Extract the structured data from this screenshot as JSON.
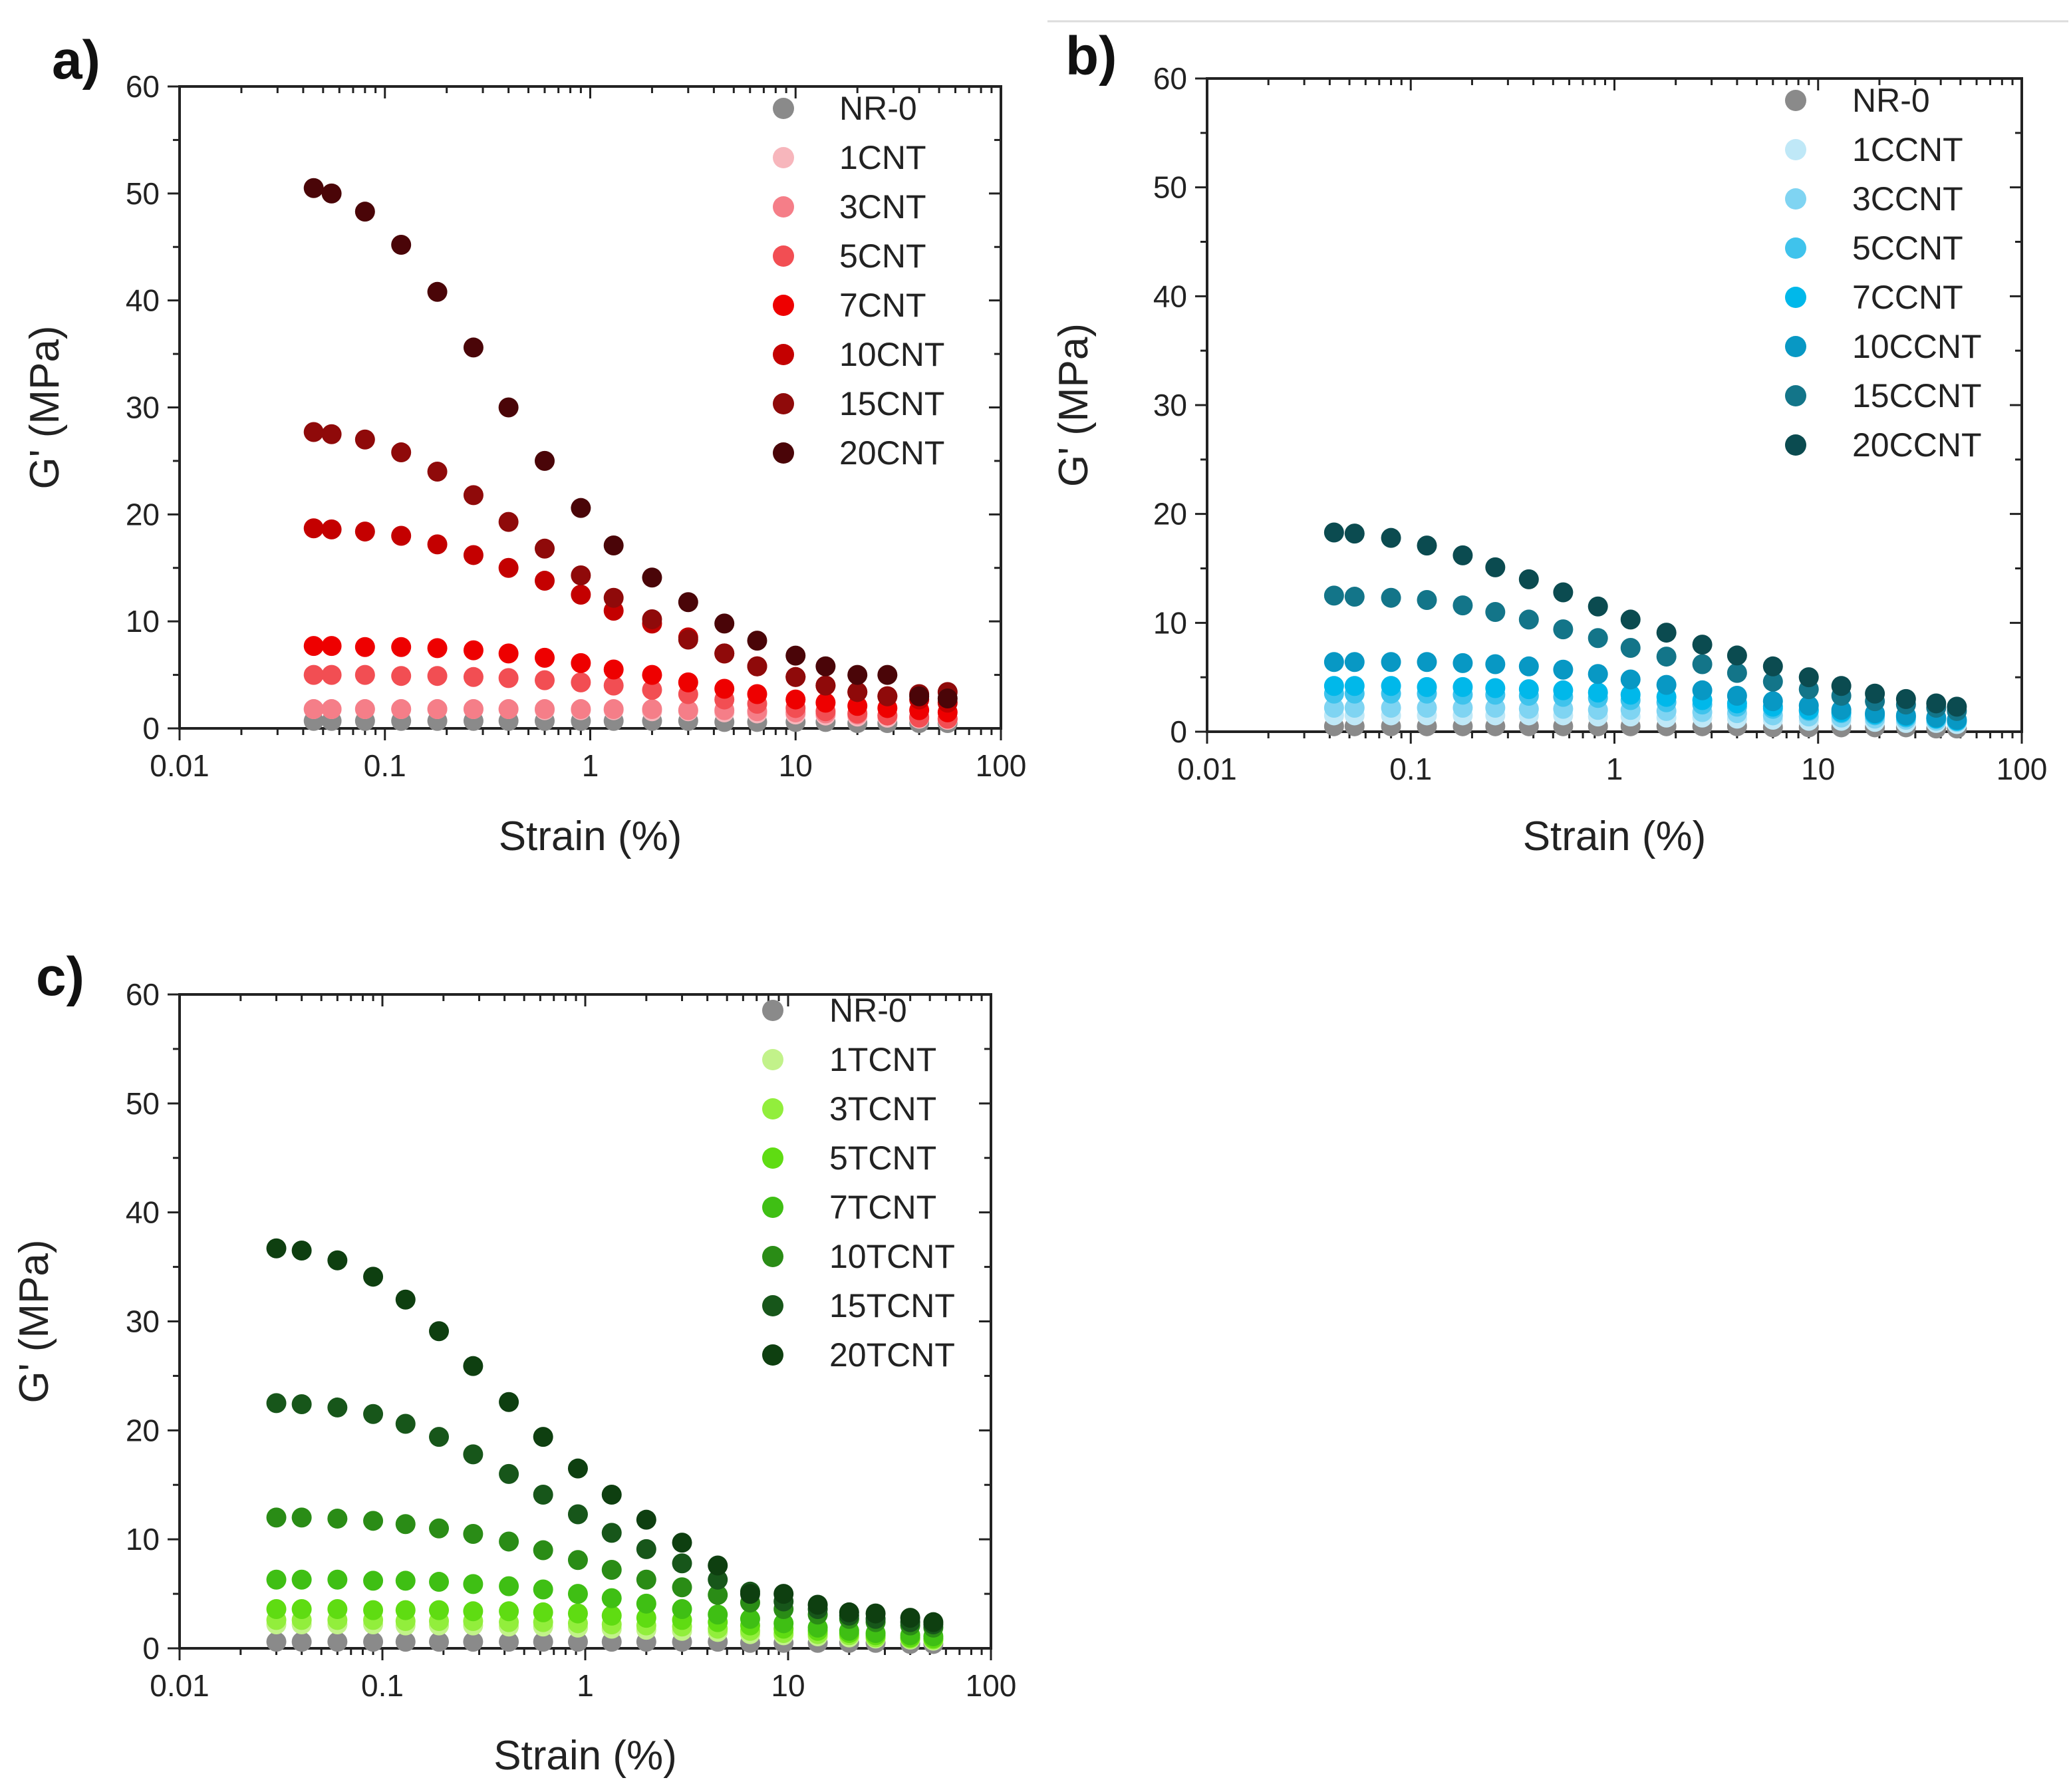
{
  "chart_data": [
    {
      "panel": "a)",
      "type": "scatter",
      "xscale": "log",
      "xlim": [
        0.01,
        100
      ],
      "ylim": [
        0,
        60
      ],
      "xticks": [
        "0.01",
        "0.1",
        "1",
        "10",
        "100"
      ],
      "yticks": [
        "0",
        "10",
        "20",
        "30",
        "40",
        "50",
        "60"
      ],
      "xlabel": "Strain (%)",
      "ylabel": "G' (MPa)",
      "legend_position": "top-right",
      "x": [
        0.045,
        0.055,
        0.08,
        0.12,
        0.18,
        0.27,
        0.4,
        0.6,
        0.9,
        1.3,
        2.0,
        3.0,
        4.5,
        6.5,
        10,
        14,
        20,
        28,
        40,
        55
      ],
      "series": [
        {
          "name": "NR-0",
          "color": "#8a8a8a",
          "values": [
            0.7,
            0.7,
            0.7,
            0.7,
            0.7,
            0.7,
            0.7,
            0.7,
            0.7,
            0.7,
            0.7,
            0.7,
            0.6,
            0.6,
            0.6,
            0.6,
            0.5,
            0.5,
            0.5,
            0.5
          ]
        },
        {
          "name": "1CNT",
          "color": "#f7b6bc",
          "values": [
            1.8,
            1.8,
            1.8,
            1.8,
            1.8,
            1.8,
            1.8,
            1.7,
            1.7,
            1.7,
            1.6,
            1.6,
            1.5,
            1.4,
            1.3,
            1.2,
            1.1,
            1.0,
            0.9,
            0.8
          ]
        },
        {
          "name": "3CNT",
          "color": "#f57e88",
          "values": [
            1.8,
            1.8,
            1.8,
            1.8,
            1.8,
            1.8,
            1.8,
            1.8,
            1.8,
            1.8,
            1.8,
            1.7,
            1.7,
            1.6,
            1.5,
            1.4,
            1.3,
            1.2,
            1.1,
            0.9
          ]
        },
        {
          "name": "5CNT",
          "color": "#f24e53",
          "values": [
            5.0,
            5.0,
            5.0,
            4.9,
            4.9,
            4.8,
            4.7,
            4.5,
            4.3,
            4.0,
            3.6,
            3.2,
            2.7,
            2.3,
            1.9,
            1.6,
            1.4,
            1.2,
            1.0,
            0.9
          ]
        },
        {
          "name": "7CNT",
          "color": "#ee0000",
          "values": [
            7.7,
            7.7,
            7.6,
            7.6,
            7.5,
            7.3,
            7.0,
            6.6,
            6.1,
            5.5,
            5.0,
            4.3,
            3.7,
            3.2,
            2.7,
            2.4,
            2.1,
            1.9,
            1.7,
            1.5
          ]
        },
        {
          "name": "10CNT",
          "color": "#c40000",
          "values": [
            18.7,
            18.6,
            18.4,
            18.0,
            17.2,
            16.2,
            15.0,
            13.8,
            12.5,
            11.0,
            9.8,
            8.5,
            7.0,
            5.8,
            4.8,
            4.0,
            3.4,
            3.0,
            2.7,
            2.4
          ]
        },
        {
          "name": "15CNT",
          "color": "#8f0a0a",
          "values": [
            27.7,
            27.5,
            27.0,
            25.8,
            24.0,
            21.8,
            19.3,
            16.8,
            14.3,
            12.2,
            10.2,
            8.3,
            7.0,
            5.8,
            4.8,
            4.0,
            3.4,
            3.0,
            3.2,
            3.4
          ]
        },
        {
          "name": "20CNT",
          "color": "#4a0508",
          "values": [
            50.5,
            50.0,
            48.3,
            45.2,
            40.8,
            35.6,
            30.0,
            25.0,
            20.6,
            17.1,
            14.1,
            11.8,
            9.8,
            8.2,
            6.8,
            5.8,
            5.0,
            5.0,
            3.0,
            2.8
          ]
        }
      ]
    },
    {
      "panel": "b)",
      "type": "scatter",
      "xscale": "log",
      "xlim": [
        0.01,
        100
      ],
      "ylim": [
        0,
        60
      ],
      "xticks": [
        "0.01",
        "0.1",
        "1",
        "10",
        "100"
      ],
      "yticks": [
        "0",
        "10",
        "20",
        "30",
        "40",
        "50",
        "60"
      ],
      "xlabel": "Strain (%)",
      "ylabel": "G' (MPa)",
      "legend_position": "top-right",
      "x": [
        0.042,
        0.053,
        0.08,
        0.12,
        0.18,
        0.26,
        0.38,
        0.56,
        0.83,
        1.2,
        1.8,
        2.7,
        4.0,
        6.0,
        9.0,
        13,
        19,
        27,
        38,
        48
      ],
      "series": [
        {
          "name": "NR-0",
          "color": "#8a8a8a",
          "values": [
            0.5,
            0.5,
            0.5,
            0.5,
            0.5,
            0.5,
            0.5,
            0.5,
            0.5,
            0.5,
            0.5,
            0.5,
            0.5,
            0.4,
            0.4,
            0.4,
            0.4,
            0.4,
            0.3,
            0.3
          ]
        },
        {
          "name": "1CCNT",
          "color": "#bfe8f7",
          "values": [
            1.5,
            1.5,
            1.5,
            1.5,
            1.5,
            1.5,
            1.5,
            1.5,
            1.4,
            1.4,
            1.3,
            1.3,
            1.2,
            1.1,
            1.0,
            1.0,
            0.9,
            0.8,
            0.8,
            0.7
          ]
        },
        {
          "name": "3CCNT",
          "color": "#7fd4f2",
          "values": [
            2.2,
            2.2,
            2.2,
            2.2,
            2.2,
            2.2,
            2.1,
            2.1,
            2.0,
            2.0,
            1.9,
            1.8,
            1.7,
            1.5,
            1.4,
            1.3,
            1.2,
            1.1,
            1.0,
            0.9
          ]
        },
        {
          "name": "5CCNT",
          "color": "#3fc3ec",
          "values": [
            3.5,
            3.5,
            3.5,
            3.5,
            3.4,
            3.4,
            3.3,
            3.2,
            3.1,
            2.9,
            2.7,
            2.5,
            2.3,
            2.1,
            1.9,
            1.7,
            1.5,
            1.3,
            1.2,
            1.0
          ]
        },
        {
          "name": "7CCNT",
          "color": "#00b8ea",
          "values": [
            4.2,
            4.2,
            4.2,
            4.1,
            4.1,
            4.0,
            3.9,
            3.8,
            3.6,
            3.4,
            3.2,
            2.9,
            2.6,
            2.3,
            2.0,
            1.8,
            1.6,
            1.4,
            1.2,
            1.0
          ]
        },
        {
          "name": "10CCNT",
          "color": "#0898c4",
          "values": [
            6.4,
            6.4,
            6.4,
            6.4,
            6.3,
            6.2,
            6.0,
            5.7,
            5.3,
            4.8,
            4.3,
            3.8,
            3.3,
            2.8,
            2.4,
            2.0,
            1.7,
            1.5,
            1.3,
            1.1
          ]
        },
        {
          "name": "15CCNT",
          "color": "#137589",
          "values": [
            12.5,
            12.4,
            12.3,
            12.1,
            11.6,
            11.0,
            10.3,
            9.4,
            8.6,
            7.7,
            6.9,
            6.2,
            5.4,
            4.6,
            3.9,
            3.3,
            2.8,
            2.5,
            2.2,
            1.9
          ]
        },
        {
          "name": "20CCNT",
          "color": "#0b4b50",
          "values": [
            18.3,
            18.2,
            17.8,
            17.1,
            16.2,
            15.1,
            14.0,
            12.8,
            11.5,
            10.3,
            9.1,
            8.0,
            7.0,
            6.0,
            5.0,
            4.2,
            3.5,
            3.0,
            2.6,
            2.3
          ]
        }
      ]
    },
    {
      "panel": "c)",
      "type": "scatter",
      "xscale": "log",
      "xlim": [
        0.01,
        100
      ],
      "ylim": [
        0,
        60
      ],
      "xticks": [
        "0.01",
        "0.1",
        "1",
        "10",
        "100"
      ],
      "yticks": [
        "0",
        "10",
        "20",
        "30",
        "40",
        "50",
        "60"
      ],
      "xlabel": "Strain (%)",
      "ylabel": "G' (MPa)",
      "legend_position": "top-right",
      "x": [
        0.03,
        0.04,
        0.06,
        0.09,
        0.13,
        0.19,
        0.28,
        0.42,
        0.62,
        0.92,
        1.35,
        2.0,
        3.0,
        4.5,
        6.5,
        9.5,
        14,
        20,
        27,
        40,
        52
      ],
      "series": [
        {
          "name": "NR-0",
          "color": "#8a8a8a",
          "values": [
            0.6,
            0.6,
            0.6,
            0.6,
            0.6,
            0.6,
            0.6,
            0.6,
            0.6,
            0.6,
            0.6,
            0.6,
            0.6,
            0.6,
            0.5,
            0.5,
            0.5,
            0.5,
            0.5,
            0.4,
            0.4
          ]
        },
        {
          "name": "1TCNT",
          "color": "#c2f28a",
          "values": [
            2.2,
            2.2,
            2.2,
            2.2,
            2.1,
            2.1,
            2.1,
            2.0,
            2.0,
            1.9,
            1.8,
            1.7,
            1.6,
            1.5,
            1.3,
            1.2,
            1.1,
            1.0,
            0.9,
            0.8,
            0.7
          ]
        },
        {
          "name": "3TCNT",
          "color": "#92ee3c",
          "values": [
            2.6,
            2.6,
            2.6,
            2.6,
            2.5,
            2.5,
            2.5,
            2.4,
            2.4,
            2.3,
            2.2,
            2.1,
            2.0,
            1.8,
            1.6,
            1.4,
            1.3,
            1.2,
            1.0,
            0.9,
            0.8
          ]
        },
        {
          "name": "5TCNT",
          "color": "#5fdc12",
          "values": [
            3.6,
            3.6,
            3.6,
            3.5,
            3.5,
            3.5,
            3.4,
            3.4,
            3.3,
            3.2,
            3.0,
            2.8,
            2.6,
            2.4,
            2.1,
            1.8,
            1.6,
            1.4,
            1.2,
            1.0,
            0.9
          ]
        },
        {
          "name": "7TCNT",
          "color": "#3fbf14",
          "values": [
            6.3,
            6.3,
            6.3,
            6.2,
            6.2,
            6.1,
            5.9,
            5.7,
            5.4,
            5.0,
            4.6,
            4.1,
            3.6,
            3.1,
            2.7,
            2.3,
            1.9,
            1.6,
            1.4,
            1.2,
            1.1
          ]
        },
        {
          "name": "10TCNT",
          "color": "#2a8c16",
          "values": [
            12.0,
            12.0,
            11.9,
            11.7,
            11.4,
            11.0,
            10.5,
            9.8,
            9.0,
            8.1,
            7.2,
            6.3,
            5.6,
            4.9,
            4.2,
            3.6,
            3.1,
            2.7,
            2.4,
            2.1,
            1.9
          ]
        },
        {
          "name": "15TCNT",
          "color": "#17561a",
          "values": [
            22.5,
            22.4,
            22.1,
            21.5,
            20.6,
            19.4,
            17.8,
            16.0,
            14.1,
            12.3,
            10.6,
            9.1,
            7.8,
            6.3,
            5.2,
            4.3,
            3.6,
            3.0,
            2.7,
            2.4,
            2.2
          ]
        },
        {
          "name": "20TCNT",
          "color": "#0e3f10",
          "values": [
            36.7,
            36.5,
            35.6,
            34.1,
            32.0,
            29.1,
            25.9,
            22.6,
            19.4,
            16.5,
            14.1,
            11.8,
            9.7,
            7.6,
            5.0,
            5.0,
            4.0,
            3.3,
            3.2,
            2.8,
            2.4
          ]
        }
      ]
    }
  ]
}
